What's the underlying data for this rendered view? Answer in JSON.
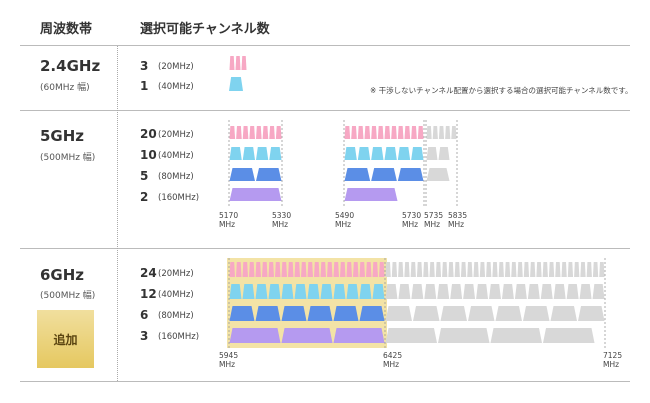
{
  "header": {
    "col1": "周波数帯",
    "col2": "選択可能チャンネル数"
  },
  "note": "※ 干渉しないチャンネル配置から選択する場合の選択可能チャンネル数です。",
  "bands": [
    {
      "name": "2.4GHz",
      "sub": "(60MHz 幅)",
      "rows": [
        {
          "count": "3",
          "width": "(20MHz)"
        },
        {
          "count": "1",
          "width": "(40MHz)"
        }
      ]
    },
    {
      "name": "5GHz",
      "sub": "(500MHz 幅)",
      "rows": [
        {
          "count": "20",
          "width": "(20MHz)"
        },
        {
          "count": "10",
          "width": "(40MHz)"
        },
        {
          "count": "5",
          "width": "(80MHz)"
        },
        {
          "count": "2",
          "width": "(160MHz)"
        }
      ],
      "ticks": [
        "5170\nMHz",
        "5330\nMHz",
        "5490\nMHz",
        "5730\nMHz",
        "5735\nMHz",
        "5835\nMHz"
      ]
    },
    {
      "name": "6GHz",
      "sub": "(500MHz 幅)",
      "badge": "追加",
      "rows": [
        {
          "count": "24",
          "width": "(20MHz)"
        },
        {
          "count": "12",
          "width": "(40MHz)"
        },
        {
          "count": "6",
          "width": "(80MHz)"
        },
        {
          "count": "3",
          "width": "(160MHz)"
        }
      ],
      "ticks": [
        "5945\nMHz",
        "6425\nMHz",
        "7125\nMHz"
      ]
    }
  ],
  "colors": {
    "ch20": "#f7a8c4",
    "ch40": "#7fd3ef",
    "ch80": "#5b8ee6",
    "ch160": "#b59af0",
    "gray": "#d8d8d8",
    "highlight": "#f3e3a6"
  }
}
